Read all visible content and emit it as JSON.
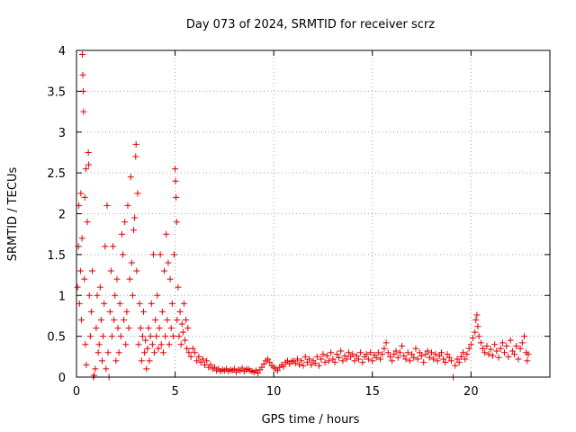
{
  "chart_data": {
    "type": "scatter",
    "title": "Day 073 of 2024, SRMTID for receiver scrz",
    "xlabel": "GPS time / hours",
    "ylabel": "SRMTID / TECUs",
    "xlim": [
      0,
      24
    ],
    "ylim": [
      0,
      4
    ],
    "xticks": [
      0,
      5,
      10,
      15,
      20
    ],
    "xtick_labels": [
      "0",
      "5",
      "10",
      "15",
      "20"
    ],
    "yticks": [
      0,
      0.5,
      1,
      1.5,
      2,
      2.5,
      3,
      3.5,
      4
    ],
    "ytick_labels": [
      "0",
      "0.5",
      "1",
      "1.5",
      "2",
      "2.5",
      "3",
      "3.5",
      "4"
    ],
    "grid": true,
    "legend": "none",
    "marker": "plus",
    "color": "#e00000",
    "series": [
      {
        "name": "SRMTID",
        "points": [
          [
            0.05,
            1.1
          ],
          [
            0.1,
            1.6
          ],
          [
            0.12,
            2.1
          ],
          [
            0.15,
            0.9
          ],
          [
            0.2,
            1.3
          ],
          [
            0.22,
            2.25
          ],
          [
            0.25,
            0.7
          ],
          [
            0.28,
            1.7
          ],
          [
            0.3,
            3.95
          ],
          [
            0.32,
            3.7
          ],
          [
            0.34,
            3.5
          ],
          [
            0.36,
            3.25
          ],
          [
            0.4,
            1.2
          ],
          [
            0.42,
            2.2
          ],
          [
            0.45,
            0.4
          ],
          [
            0.48,
            2.55
          ],
          [
            0.5,
            0.15
          ],
          [
            0.55,
            1.9
          ],
          [
            0.6,
            2.75
          ],
          [
            0.62,
            2.6
          ],
          [
            0.65,
            1.0
          ],
          [
            0.7,
            0.5
          ],
          [
            0.75,
            0.8
          ],
          [
            0.8,
            1.3
          ],
          [
            0.85,
            0.0
          ],
          [
            0.9,
            0.02
          ],
          [
            0.95,
            0.1
          ],
          [
            1.0,
            0.6
          ],
          [
            1.05,
            1.0
          ],
          [
            1.1,
            0.3
          ],
          [
            1.15,
            0.4
          ],
          [
            1.2,
            1.1
          ],
          [
            1.25,
            0.7
          ],
          [
            1.3,
            0.2
          ],
          [
            1.35,
            0.5
          ],
          [
            1.4,
            0.9
          ],
          [
            1.45,
            1.6
          ],
          [
            1.5,
            0.1
          ],
          [
            1.55,
            2.1
          ],
          [
            1.6,
            0.3
          ],
          [
            1.65,
            0.0
          ],
          [
            1.7,
            0.8
          ],
          [
            1.75,
            1.3
          ],
          [
            1.8,
            0.5
          ],
          [
            1.85,
            1.6
          ],
          [
            1.9,
            0.7
          ],
          [
            1.95,
            1.0
          ],
          [
            2.0,
            0.2
          ],
          [
            2.05,
            1.2
          ],
          [
            2.1,
            0.6
          ],
          [
            2.15,
            0.3
          ],
          [
            2.2,
            0.9
          ],
          [
            2.25,
            0.5
          ],
          [
            2.3,
            1.75
          ],
          [
            2.35,
            1.5
          ],
          [
            2.4,
            0.7
          ],
          [
            2.45,
            1.9
          ],
          [
            2.5,
            0.4
          ],
          [
            2.55,
            0.8
          ],
          [
            2.6,
            2.1
          ],
          [
            2.65,
            0.6
          ],
          [
            2.7,
            1.2
          ],
          [
            2.75,
            2.45
          ],
          [
            2.8,
            1.4
          ],
          [
            2.85,
            1.0
          ],
          [
            2.9,
            1.8
          ],
          [
            2.95,
            1.95
          ],
          [
            3.0,
            2.7
          ],
          [
            3.02,
            2.85
          ],
          [
            3.05,
            1.3
          ],
          [
            3.1,
            2.25
          ],
          [
            3.15,
            0.4
          ],
          [
            3.2,
            0.9
          ],
          [
            3.25,
            0.6
          ],
          [
            3.3,
            0.2
          ],
          [
            3.35,
            0.5
          ],
          [
            3.4,
            0.8
          ],
          [
            3.45,
            0.3
          ],
          [
            3.5,
            0.45
          ],
          [
            3.55,
            0.1
          ],
          [
            3.6,
            0.35
          ],
          [
            3.65,
            0.6
          ],
          [
            3.7,
            0.2
          ],
          [
            3.75,
            0.5
          ],
          [
            3.8,
            0.9
          ],
          [
            3.85,
            0.4
          ],
          [
            3.9,
            1.5
          ],
          [
            3.95,
            0.3
          ],
          [
            4.0,
            0.7
          ],
          [
            4.05,
            0.5
          ],
          [
            4.1,
            1.0
          ],
          [
            4.15,
            0.35
          ],
          [
            4.2,
            0.6
          ],
          [
            4.25,
            1.5
          ],
          [
            4.3,
            0.4
          ],
          [
            4.35,
            0.8
          ],
          [
            4.4,
            0.3
          ],
          [
            4.45,
            1.3
          ],
          [
            4.5,
            0.5
          ],
          [
            4.55,
            1.75
          ],
          [
            4.6,
            0.7
          ],
          [
            4.65,
            1.4
          ],
          [
            4.7,
            0.4
          ],
          [
            4.75,
            1.2
          ],
          [
            4.8,
            0.6
          ],
          [
            4.85,
            0.9
          ],
          [
            4.9,
            0.5
          ],
          [
            4.95,
            1.5
          ],
          [
            5.0,
            2.55
          ],
          [
            5.02,
            2.4
          ],
          [
            5.05,
            2.2
          ],
          [
            5.08,
            1.9
          ],
          [
            5.1,
            0.7
          ],
          [
            5.15,
            1.1
          ],
          [
            5.2,
            0.5
          ],
          [
            5.25,
            0.8
          ],
          [
            5.3,
            0.4
          ],
          [
            5.35,
            0.65
          ],
          [
            5.4,
            0.55
          ],
          [
            5.45,
            0.9
          ],
          [
            5.5,
            0.45
          ],
          [
            5.55,
            0.7
          ],
          [
            5.6,
            0.35
          ],
          [
            5.65,
            0.6
          ],
          [
            5.7,
            0.3
          ],
          [
            5.8,
            0.25
          ],
          [
            5.9,
            0.35
          ],
          [
            6.0,
            0.3
          ],
          [
            6.1,
            0.2
          ],
          [
            6.2,
            0.25
          ],
          [
            6.3,
            0.18
          ],
          [
            6.4,
            0.22
          ],
          [
            6.5,
            0.15
          ],
          [
            6.6,
            0.2
          ],
          [
            6.7,
            0.12
          ],
          [
            6.8,
            0.15
          ],
          [
            6.9,
            0.1
          ],
          [
            7.0,
            0.12
          ],
          [
            7.1,
            0.08
          ],
          [
            7.2,
            0.1
          ],
          [
            7.3,
            0.07
          ],
          [
            7.4,
            0.09
          ],
          [
            7.5,
            0.08
          ],
          [
            7.6,
            0.1
          ],
          [
            7.7,
            0.07
          ],
          [
            7.8,
            0.09
          ],
          [
            7.9,
            0.08
          ],
          [
            8.0,
            0.1
          ],
          [
            8.1,
            0.06
          ],
          [
            8.2,
            0.09
          ],
          [
            8.3,
            0.08
          ],
          [
            8.4,
            0.11
          ],
          [
            8.5,
            0.07
          ],
          [
            8.6,
            0.09
          ],
          [
            8.7,
            0.1
          ],
          [
            8.8,
            0.08
          ],
          [
            8.9,
            0.07
          ],
          [
            9.0,
            0.06
          ],
          [
            9.1,
            0.08
          ],
          [
            9.2,
            0.05
          ],
          [
            9.3,
            0.09
          ],
          [
            9.4,
            0.12
          ],
          [
            9.5,
            0.16
          ],
          [
            9.6,
            0.2
          ],
          [
            9.7,
            0.22
          ],
          [
            9.8,
            0.18
          ],
          [
            9.9,
            0.14
          ],
          [
            10.0,
            0.12
          ],
          [
            10.1,
            0.1
          ],
          [
            10.2,
            0.08
          ],
          [
            10.3,
            0.12
          ],
          [
            10.4,
            0.15
          ],
          [
            10.5,
            0.13
          ],
          [
            10.6,
            0.18
          ],
          [
            10.7,
            0.2
          ],
          [
            10.8,
            0.16
          ],
          [
            10.9,
            0.19
          ],
          [
            11.0,
            0.2
          ],
          [
            11.1,
            0.17
          ],
          [
            11.2,
            0.22
          ],
          [
            11.3,
            0.15
          ],
          [
            11.4,
            0.2
          ],
          [
            11.5,
            0.14
          ],
          [
            11.6,
            0.25
          ],
          [
            11.7,
            0.18
          ],
          [
            11.8,
            0.22
          ],
          [
            11.9,
            0.15
          ],
          [
            12.0,
            0.2
          ],
          [
            12.1,
            0.17
          ],
          [
            12.2,
            0.25
          ],
          [
            12.3,
            0.14
          ],
          [
            12.4,
            0.22
          ],
          [
            12.5,
            0.28
          ],
          [
            12.6,
            0.18
          ],
          [
            12.7,
            0.26
          ],
          [
            12.8,
            0.2
          ],
          [
            12.9,
            0.3
          ],
          [
            13.0,
            0.22
          ],
          [
            13.1,
            0.18
          ],
          [
            13.2,
            0.28
          ],
          [
            13.3,
            0.24
          ],
          [
            13.4,
            0.32
          ],
          [
            13.5,
            0.2
          ],
          [
            13.6,
            0.26
          ],
          [
            13.7,
            0.22
          ],
          [
            13.8,
            0.3
          ],
          [
            13.9,
            0.25
          ],
          [
            14.0,
            0.28
          ],
          [
            14.1,
            0.2
          ],
          [
            14.2,
            0.26
          ],
          [
            14.3,
            0.22
          ],
          [
            14.4,
            0.3
          ],
          [
            14.5,
            0.18
          ],
          [
            14.6,
            0.25
          ],
          [
            14.7,
            0.28
          ],
          [
            14.8,
            0.22
          ],
          [
            14.9,
            0.3
          ],
          [
            15.0,
            0.2
          ],
          [
            15.1,
            0.27
          ],
          [
            15.2,
            0.24
          ],
          [
            15.3,
            0.3
          ],
          [
            15.4,
            0.22
          ],
          [
            15.5,
            0.28
          ],
          [
            15.6,
            0.35
          ],
          [
            15.7,
            0.42
          ],
          [
            15.8,
            0.3
          ],
          [
            15.9,
            0.25
          ],
          [
            16.0,
            0.2
          ],
          [
            16.1,
            0.28
          ],
          [
            16.2,
            0.32
          ],
          [
            16.3,
            0.24
          ],
          [
            16.4,
            0.3
          ],
          [
            16.5,
            0.38
          ],
          [
            16.6,
            0.26
          ],
          [
            16.7,
            0.22
          ],
          [
            16.8,
            0.3
          ],
          [
            16.9,
            0.2
          ],
          [
            17.0,
            0.28
          ],
          [
            17.1,
            0.24
          ],
          [
            17.2,
            0.35
          ],
          [
            17.3,
            0.22
          ],
          [
            17.4,
            0.3
          ],
          [
            17.5,
            0.26
          ],
          [
            17.6,
            0.18
          ],
          [
            17.7,
            0.28
          ],
          [
            17.8,
            0.32
          ],
          [
            17.9,
            0.24
          ],
          [
            18.0,
            0.3
          ],
          [
            18.1,
            0.22
          ],
          [
            18.2,
            0.28
          ],
          [
            18.3,
            0.2
          ],
          [
            18.4,
            0.26
          ],
          [
            18.5,
            0.3
          ],
          [
            18.6,
            0.22
          ],
          [
            18.7,
            0.18
          ],
          [
            18.8,
            0.28
          ],
          [
            18.9,
            0.24
          ],
          [
            19.0,
            0.2
          ],
          [
            19.1,
            0.0
          ],
          [
            19.2,
            0.14
          ],
          [
            19.3,
            0.22
          ],
          [
            19.4,
            0.18
          ],
          [
            19.5,
            0.25
          ],
          [
            19.6,
            0.3
          ],
          [
            19.7,
            0.22
          ],
          [
            19.8,
            0.28
          ],
          [
            19.9,
            0.35
          ],
          [
            20.0,
            0.4
          ],
          [
            20.1,
            0.48
          ],
          [
            20.2,
            0.55
          ],
          [
            20.25,
            0.7
          ],
          [
            20.3,
            0.76
          ],
          [
            20.35,
            0.62
          ],
          [
            20.4,
            0.5
          ],
          [
            20.5,
            0.42
          ],
          [
            20.6,
            0.35
          ],
          [
            20.7,
            0.3
          ],
          [
            20.8,
            0.38
          ],
          [
            20.9,
            0.28
          ],
          [
            21.0,
            0.34
          ],
          [
            21.1,
            0.26
          ],
          [
            21.2,
            0.4
          ],
          [
            21.3,
            0.32
          ],
          [
            21.4,
            0.24
          ],
          [
            21.5,
            0.35
          ],
          [
            21.6,
            0.42
          ],
          [
            21.7,
            0.3
          ],
          [
            21.8,
            0.38
          ],
          [
            21.9,
            0.25
          ],
          [
            22.0,
            0.45
          ],
          [
            22.1,
            0.32
          ],
          [
            22.2,
            0.28
          ],
          [
            22.3,
            0.38
          ],
          [
            22.4,
            0.22
          ],
          [
            22.5,
            0.35
          ],
          [
            22.6,
            0.42
          ],
          [
            22.7,
            0.5
          ],
          [
            22.8,
            0.3
          ],
          [
            22.85,
            0.2
          ],
          [
            22.9,
            0.28
          ]
        ]
      }
    ]
  }
}
